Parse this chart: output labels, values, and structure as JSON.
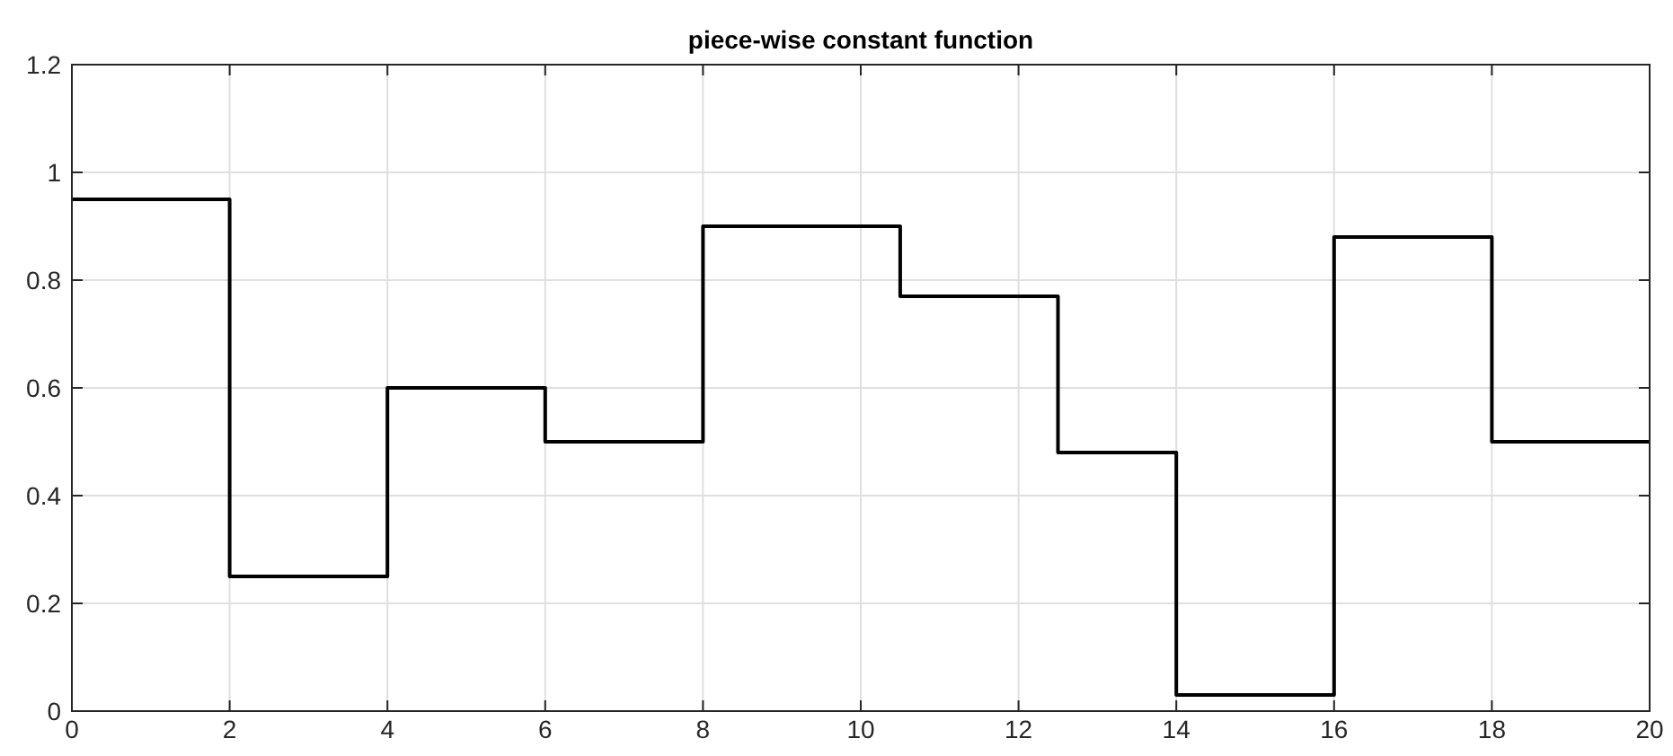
{
  "chart_data": {
    "type": "step",
    "title": "piece-wise constant function",
    "x": [
      0,
      2,
      4,
      6,
      8,
      10.5,
      12.5,
      14,
      16,
      18,
      20
    ],
    "series": [
      {
        "color": "#000000",
        "values": [
          0.95,
          0.25,
          0.6,
          0.5,
          0.9,
          0.77,
          0.48,
          0.03,
          0.88,
          0.5,
          0.5
        ]
      }
    ],
    "xlim": [
      0,
      20
    ],
    "xticks": [
      0,
      2,
      4,
      6,
      8,
      10,
      12,
      14,
      16,
      18,
      20
    ],
    "ylim": [
      0,
      1.2
    ],
    "yticks": [
      0,
      0.2,
      0.4,
      0.6,
      0.8,
      1,
      1.2
    ],
    "grid": true
  }
}
